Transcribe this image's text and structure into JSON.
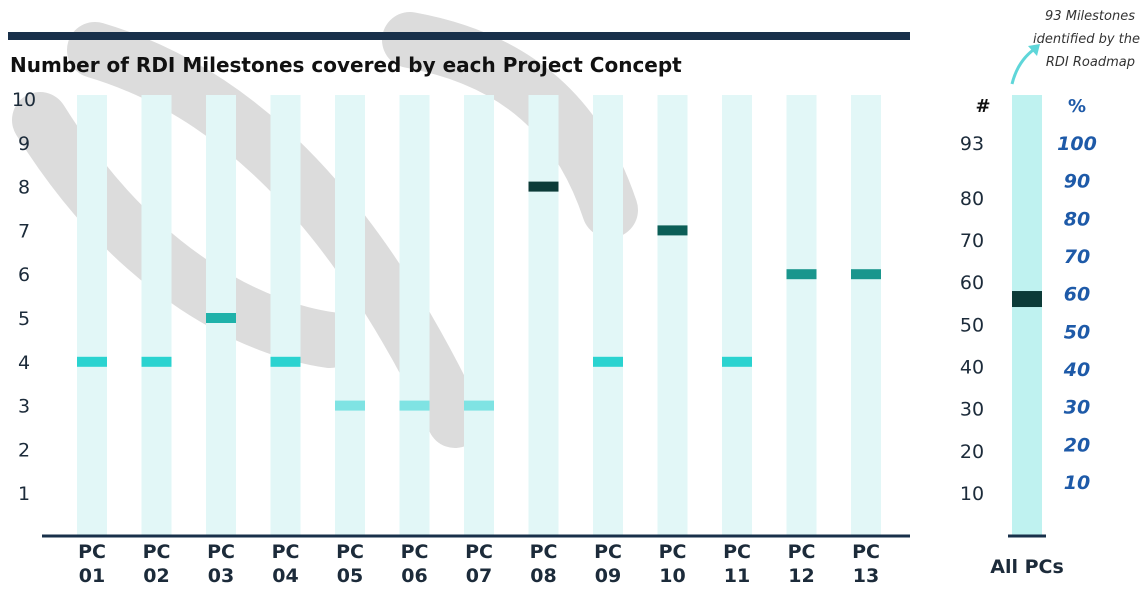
{
  "chart_data": [
    {
      "type": "bar",
      "title": "Number of RDI Milestones covered by each Project Concept",
      "xlabel": "",
      "ylabel": "",
      "ylim": [
        0,
        10
      ],
      "y_ticks": [
        "1",
        "2",
        "3",
        "4",
        "5",
        "6",
        "7",
        "8",
        "9",
        "10"
      ],
      "grid": false,
      "legend": "none",
      "categories": [
        {
          "line1": "PC",
          "line2": "01"
        },
        {
          "line1": "PC",
          "line2": "02"
        },
        {
          "line1": "PC",
          "line2": "03"
        },
        {
          "line1": "PC",
          "line2": "04"
        },
        {
          "line1": "PC",
          "line2": "05"
        },
        {
          "line1": "PC",
          "line2": "06"
        },
        {
          "line1": "PC",
          "line2": "07"
        },
        {
          "line1": "PC",
          "line2": "08"
        },
        {
          "line1": "PC",
          "line2": "09"
        },
        {
          "line1": "PC",
          "line2": "10"
        },
        {
          "line1": "PC",
          "line2": "11"
        },
        {
          "line1": "PC",
          "line2": "12"
        },
        {
          "line1": "PC",
          "line2": "13"
        }
      ],
      "values": [
        4,
        4,
        5,
        4,
        3,
        3,
        3,
        8,
        4,
        7,
        4,
        6,
        6
      ],
      "colors": {
        "track": "#e2f7f7",
        "marker_by_value": {
          "3": "#7fe3e3",
          "4": "#2ad3d0",
          "5": "#1fb2aa",
          "6": "#1a968d",
          "7": "#0b5e57",
          "8": "#0c3b38"
        },
        "title_rule": "#18304a"
      }
    },
    {
      "type": "bar",
      "category": "All PCs",
      "value": 56,
      "total": 93,
      "ylim": [
        0,
        93
      ],
      "count_axis_header": "#",
      "count_ticks": [
        {
          "value": 10,
          "label": "10"
        },
        {
          "value": 20,
          "label": "20"
        },
        {
          "value": 30,
          "label": "30"
        },
        {
          "value": 40,
          "label": "40"
        },
        {
          "value": 50,
          "label": "50"
        },
        {
          "value": 60,
          "label": "60"
        },
        {
          "value": 70,
          "label": "70"
        },
        {
          "value": 80,
          "label": "80"
        },
        {
          "value": 93,
          "label": "93"
        }
      ],
      "percent_axis_header": "%",
      "percent_ticks": [
        {
          "value": 10,
          "label": "10"
        },
        {
          "value": 20,
          "label": "20"
        },
        {
          "value": 30,
          "label": "30"
        },
        {
          "value": 40,
          "label": "40"
        },
        {
          "value": 50,
          "label": "50"
        },
        {
          "value": 60,
          "label": "60"
        },
        {
          "value": 70,
          "label": "70"
        },
        {
          "value": 80,
          "label": "80"
        },
        {
          "value": 90,
          "label": "90"
        },
        {
          "value": 100,
          "label": "100"
        }
      ],
      "annotation": {
        "lines": [
          "93 Milestones",
          "identified by the",
          "RDI Roadmap"
        ]
      },
      "colors": {
        "track": "#bff2f0",
        "marker": "#0c3b38",
        "percent_text": "#1e5aa8",
        "arrow": "#5fd6d9"
      }
    }
  ]
}
